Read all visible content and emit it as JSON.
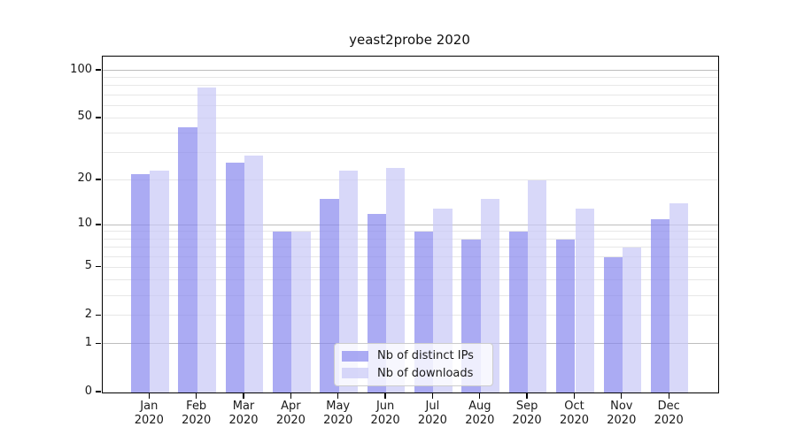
{
  "chart_data": {
    "type": "bar",
    "title": "yeast2probe 2020",
    "year_label": "2020",
    "categories": [
      "Jan",
      "Feb",
      "Mar",
      "Apr",
      "May",
      "Jun",
      "Jul",
      "Aug",
      "Sep",
      "Oct",
      "Nov",
      "Dec"
    ],
    "series": [
      {
        "name": "Nb of distinct IPs",
        "color": "rgba(136,136,238,0.7)",
        "values": [
          22,
          44,
          26,
          9,
          15,
          12,
          9,
          8,
          9,
          8,
          6,
          11
        ]
      },
      {
        "name": "Nb of downloads",
        "color": "rgba(199,199,246,0.7)",
        "values": [
          23,
          78,
          29,
          9,
          23,
          24,
          13,
          15,
          20,
          13,
          7,
          14
        ]
      }
    ],
    "yticks": [
      0,
      1,
      2,
      5,
      10,
      20,
      50,
      100
    ],
    "yscale": "log1p",
    "ylim": [
      0,
      123
    ],
    "grid": "on",
    "legend_position": "lower center"
  }
}
